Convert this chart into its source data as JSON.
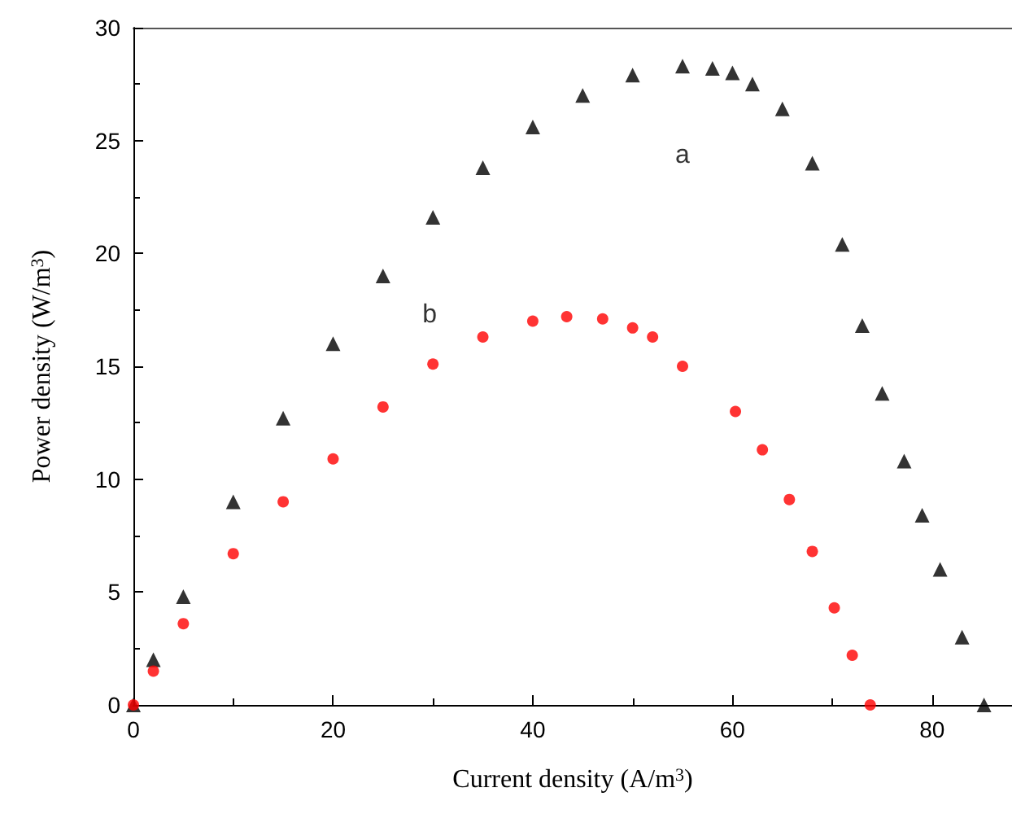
{
  "chart_data": {
    "type": "scatter",
    "xlabel": "Current density (A/m$^{3}$)",
    "ylabel": "Power density (W/m$^{3}$)",
    "xlim": [
      0,
      88
    ],
    "xticks": [
      0,
      20,
      40,
      60,
      80
    ],
    "ylim": [
      0,
      30
    ],
    "yticks": [
      0,
      5,
      10,
      15,
      20,
      25,
      30
    ],
    "grid": false,
    "series": [
      {
        "name": "a",
        "color": "#000000",
        "marker": "triangle",
        "x": [
          0,
          2,
          5,
          10,
          15,
          20,
          25,
          30,
          35,
          40,
          45,
          50,
          55,
          58,
          60,
          62,
          65,
          68,
          71,
          73,
          75,
          77.2,
          79,
          80.8,
          83,
          85.2
        ],
        "values": [
          0,
          2.0,
          4.8,
          9.0,
          12.7,
          16.0,
          19.0,
          21.6,
          23.8,
          25.6,
          27.0,
          27.9,
          28.3,
          28.2,
          28.0,
          27.5,
          26.4,
          24.0,
          20.4,
          16.8,
          13.8,
          10.8,
          8.4,
          6.0,
          3.0,
          0
        ]
      },
      {
        "name": "b",
        "color": "#ff0000",
        "marker": "circle",
        "x": [
          0,
          2,
          5,
          10,
          15,
          20,
          25,
          30,
          35,
          40,
          43.4,
          47,
          50,
          52,
          55,
          60.3,
          63,
          65.7,
          68,
          70.2,
          72,
          73.8
        ],
        "values": [
          0,
          1.5,
          3.6,
          6.7,
          9.0,
          10.9,
          13.2,
          15.1,
          16.3,
          17.0,
          17.2,
          17.1,
          16.7,
          16.3,
          15.0,
          13.0,
          11.3,
          9.1,
          6.8,
          4.3,
          2.2,
          0
        ]
      }
    ]
  }
}
